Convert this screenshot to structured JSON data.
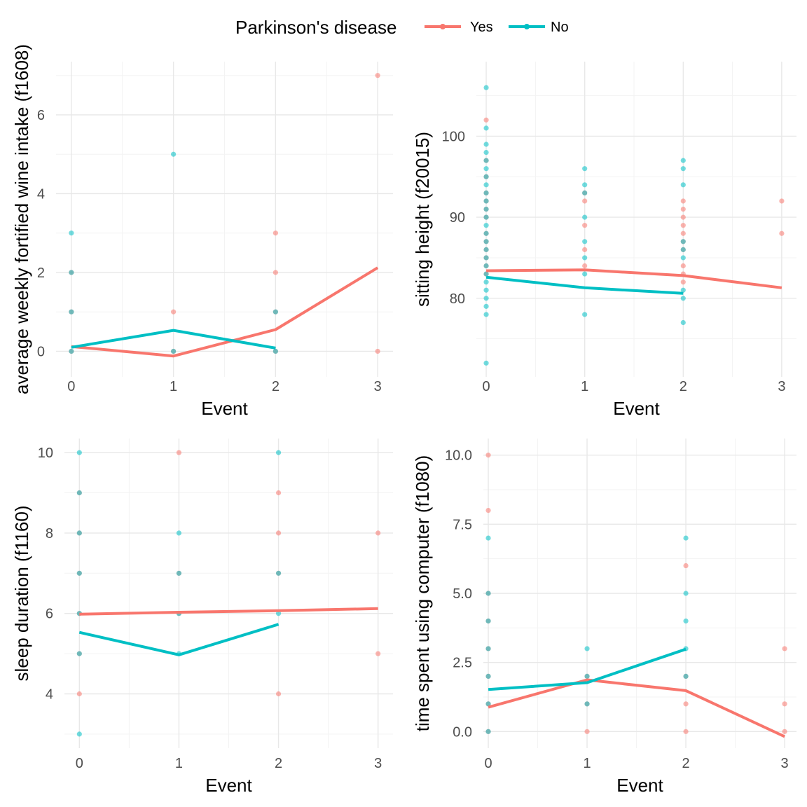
{
  "legend": {
    "title": "Parkinson's disease",
    "entries": [
      {
        "label": "Yes",
        "color": "#F8766D"
      },
      {
        "label": "No",
        "color": "#00BFC4"
      }
    ]
  },
  "chart_data": [
    {
      "type": "scatter",
      "xlabel": "Event",
      "ylabel": "average weekly fortified wine intake (f1608)",
      "xticks": [
        0,
        1,
        2,
        3
      ],
      "yticks": [
        0,
        2,
        4,
        6
      ],
      "xlim": [
        -0.15,
        3.15
      ],
      "ylim": [
        -0.65,
        7.35
      ],
      "grid": true,
      "series": [
        {
          "name": "Yes",
          "color": "#F8766D",
          "points": [
            [
              0,
              0
            ],
            [
              0,
              1
            ],
            [
              0,
              2
            ],
            [
              1,
              0
            ],
            [
              1,
              1
            ],
            [
              2,
              0
            ],
            [
              2,
              1
            ],
            [
              2,
              2
            ],
            [
              2,
              3
            ],
            [
              3,
              0
            ],
            [
              3,
              7
            ]
          ],
          "trend": [
            [
              0,
              0.12
            ],
            [
              1,
              -0.12
            ],
            [
              2,
              0.55
            ],
            [
              3,
              2.12
            ]
          ]
        },
        {
          "name": "No",
          "color": "#00BFC4",
          "points": [
            [
              0,
              0
            ],
            [
              0,
              1
            ],
            [
              0,
              2
            ],
            [
              0,
              3
            ],
            [
              1,
              0
            ],
            [
              1,
              5
            ],
            [
              2,
              0
            ],
            [
              2,
              1
            ]
          ],
          "trend": [
            [
              0,
              0.1
            ],
            [
              1,
              0.53
            ],
            [
              2,
              0.08
            ]
          ]
        }
      ]
    },
    {
      "type": "scatter",
      "xlabel": "Event",
      "ylabel": "sitting height (f20015)",
      "xticks": [
        0,
        1,
        2,
        3
      ],
      "yticks": [
        80,
        90,
        100
      ],
      "xlim": [
        -0.1,
        3.15
      ],
      "ylim": [
        70.3,
        109.2
      ],
      "grid": true,
      "series": [
        {
          "name": "Yes",
          "color": "#F8766D",
          "points": [
            [
              0,
              102
            ],
            [
              0,
              97
            ],
            [
              0,
              95
            ],
            [
              0,
              93
            ],
            [
              0,
              92
            ],
            [
              0,
              91
            ],
            [
              0,
              90
            ],
            [
              0,
              88
            ],
            [
              0,
              87
            ],
            [
              0,
              86
            ],
            [
              0,
              85
            ],
            [
              0,
              84
            ],
            [
              0,
              83
            ],
            [
              1,
              93
            ],
            [
              1,
              92
            ],
            [
              1,
              89
            ],
            [
              1,
              86
            ],
            [
              1,
              84
            ],
            [
              2,
              92
            ],
            [
              2,
              91
            ],
            [
              2,
              90
            ],
            [
              2,
              89
            ],
            [
              2,
              88
            ],
            [
              2,
              87
            ],
            [
              2,
              86
            ],
            [
              2,
              84
            ],
            [
              2,
              83
            ],
            [
              2,
              82
            ],
            [
              3,
              92
            ],
            [
              3,
              88
            ]
          ],
          "trend": [
            [
              0,
              83.4
            ],
            [
              1,
              83.5
            ],
            [
              2,
              82.8
            ],
            [
              3,
              81.3
            ]
          ]
        },
        {
          "name": "No",
          "color": "#00BFC4",
          "points": [
            [
              0,
              106
            ],
            [
              0,
              101
            ],
            [
              0,
              99
            ],
            [
              0,
              98
            ],
            [
              0,
              97
            ],
            [
              0,
              96
            ],
            [
              0,
              95
            ],
            [
              0,
              94
            ],
            [
              0,
              93
            ],
            [
              0,
              92
            ],
            [
              0,
              91
            ],
            [
              0,
              90
            ],
            [
              0,
              89
            ],
            [
              0,
              88
            ],
            [
              0,
              87
            ],
            [
              0,
              86
            ],
            [
              0,
              85
            ],
            [
              0,
              84
            ],
            [
              0,
              83
            ],
            [
              0,
              82
            ],
            [
              0,
              81
            ],
            [
              0,
              80
            ],
            [
              0,
              79
            ],
            [
              0,
              78
            ],
            [
              0,
              72
            ],
            [
              1,
              96
            ],
            [
              1,
              94
            ],
            [
              1,
              93
            ],
            [
              1,
              90
            ],
            [
              1,
              87
            ],
            [
              1,
              85
            ],
            [
              1,
              83
            ],
            [
              1,
              78
            ],
            [
              2,
              97
            ],
            [
              2,
              96
            ],
            [
              2,
              94
            ],
            [
              2,
              87
            ],
            [
              2,
              86
            ],
            [
              2,
              85
            ],
            [
              2,
              81
            ],
            [
              2,
              80
            ],
            [
              2,
              77
            ]
          ],
          "trend": [
            [
              0,
              82.6
            ],
            [
              1,
              81.3
            ],
            [
              2,
              80.6
            ]
          ]
        }
      ]
    },
    {
      "type": "scatter",
      "xlabel": "Event",
      "ylabel": "sleep duration (f1160)",
      "xticks": [
        0,
        1,
        2,
        3
      ],
      "yticks": [
        4,
        6,
        8,
        10
      ],
      "xlim": [
        -0.15,
        3.15
      ],
      "ylim": [
        2.65,
        10.35
      ],
      "grid": true,
      "series": [
        {
          "name": "Yes",
          "color": "#F8766D",
          "points": [
            [
              0,
              4
            ],
            [
              0,
              5
            ],
            [
              0,
              6
            ],
            [
              0,
              7
            ],
            [
              0,
              8
            ],
            [
              0,
              9
            ],
            [
              1,
              6
            ],
            [
              1,
              7
            ],
            [
              1,
              10
            ],
            [
              2,
              4
            ],
            [
              2,
              7
            ],
            [
              2,
              8
            ],
            [
              2,
              9
            ],
            [
              3,
              5
            ],
            [
              3,
              8
            ]
          ],
          "trend": [
            [
              0,
              5.98
            ],
            [
              1,
              6.03
            ],
            [
              2,
              6.07
            ],
            [
              3,
              6.12
            ]
          ]
        },
        {
          "name": "No",
          "color": "#00BFC4",
          "points": [
            [
              0,
              3
            ],
            [
              0,
              5
            ],
            [
              0,
              6
            ],
            [
              0,
              7
            ],
            [
              0,
              8
            ],
            [
              0,
              9
            ],
            [
              0,
              10
            ],
            [
              1,
              5
            ],
            [
              1,
              6
            ],
            [
              1,
              7
            ],
            [
              1,
              8
            ],
            [
              2,
              6
            ],
            [
              2,
              7
            ],
            [
              2,
              10
            ]
          ],
          "trend": [
            [
              0,
              5.53
            ],
            [
              1,
              4.97
            ],
            [
              2,
              5.73
            ]
          ]
        }
      ]
    },
    {
      "type": "scatter",
      "xlabel": "Event",
      "ylabel": "time spent using computer (f1080)",
      "xticks": [
        0,
        1,
        2,
        3
      ],
      "yticks": [
        0.0,
        2.5,
        5.0,
        7.5,
        10.0
      ],
      "ytick_labels": [
        "0.0",
        "2.5",
        "5.0",
        "7.5",
        "10.0"
      ],
      "xlim": [
        -0.05,
        3.12
      ],
      "ylim": [
        -0.6,
        10.6
      ],
      "grid": true,
      "series": [
        {
          "name": "Yes",
          "color": "#F8766D",
          "points": [
            [
              0,
              0
            ],
            [
              0,
              1
            ],
            [
              0,
              2
            ],
            [
              0,
              3
            ],
            [
              0,
              4
            ],
            [
              0,
              5
            ],
            [
              0,
              8
            ],
            [
              0,
              10
            ],
            [
              1,
              0
            ],
            [
              1,
              1
            ],
            [
              1,
              2
            ],
            [
              2,
              0
            ],
            [
              2,
              1
            ],
            [
              2,
              2
            ],
            [
              2,
              6
            ],
            [
              3,
              0
            ],
            [
              3,
              1
            ],
            [
              3,
              3
            ]
          ],
          "trend": [
            [
              0,
              0.88
            ],
            [
              1,
              1.87
            ],
            [
              2,
              1.48
            ],
            [
              3,
              -0.18
            ]
          ]
        },
        {
          "name": "No",
          "color": "#00BFC4",
          "points": [
            [
              0,
              0
            ],
            [
              0,
              1
            ],
            [
              0,
              2
            ],
            [
              0,
              3
            ],
            [
              0,
              4
            ],
            [
              0,
              5
            ],
            [
              0,
              7
            ],
            [
              1,
              1
            ],
            [
              1,
              2
            ],
            [
              1,
              3
            ],
            [
              2,
              2
            ],
            [
              2,
              3
            ],
            [
              2,
              4
            ],
            [
              2,
              5
            ],
            [
              2,
              7
            ]
          ],
          "trend": [
            [
              0,
              1.52
            ],
            [
              1,
              1.77
            ],
            [
              2,
              2.98
            ]
          ]
        }
      ]
    }
  ]
}
